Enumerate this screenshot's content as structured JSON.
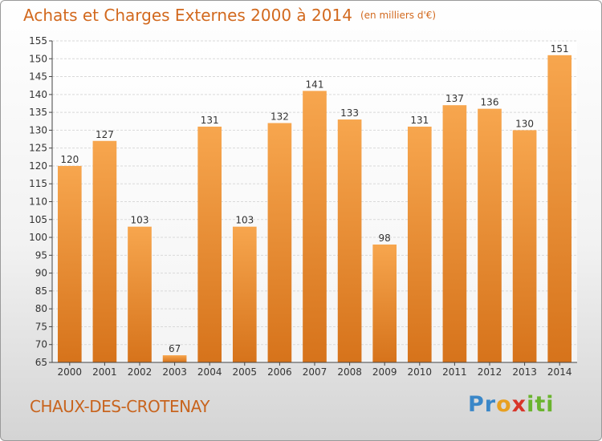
{
  "header": {
    "title": "Achats et Charges Externes 2000 à 2014",
    "unit": "(en milliers d'€)"
  },
  "footer": {
    "city": "CHAUX-DES-CROTENAY",
    "logo_parts": [
      "Pr",
      "o",
      "x",
      "iti"
    ]
  },
  "colors": {
    "bar_light": "#f7a64e",
    "bar_dark": "#d6731b",
    "grid": "#d9d9d9",
    "axis": "#444444",
    "title": "#d2691e"
  },
  "chart_data": {
    "type": "bar",
    "title": "Achats et Charges Externes 2000 à 2014",
    "subtitle": "(en milliers d'€)",
    "xlabel": "",
    "ylabel": "",
    "categories": [
      "2000",
      "2001",
      "2002",
      "2003",
      "2004",
      "2005",
      "2006",
      "2007",
      "2008",
      "2009",
      "2010",
      "2011",
      "2012",
      "2013",
      "2014"
    ],
    "values": [
      120,
      127,
      103,
      67,
      131,
      103,
      132,
      141,
      133,
      98,
      131,
      137,
      136,
      130,
      151
    ],
    "ylim": [
      65,
      155
    ],
    "ytick_step": 5,
    "grid": true,
    "legend": "none"
  }
}
